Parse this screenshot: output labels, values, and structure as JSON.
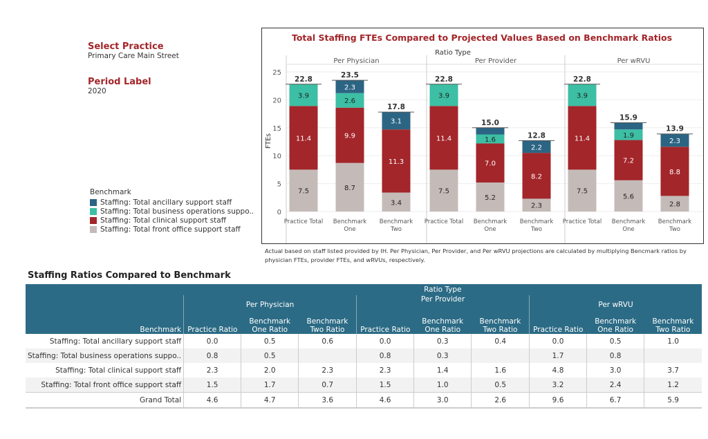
{
  "filters": {
    "practice_label": "Select Practice",
    "practice_value": "Primary Care Main Street",
    "period_label": "Period Label",
    "period_value": "2020"
  },
  "legend": {
    "title": "Benchmark",
    "items": [
      "Staffing: Total ancillary support staff",
      "Staffing: Total business operations suppo..",
      "Staffing: Total clinical support staff",
      "Staffing: Total front office support staff"
    ]
  },
  "colors": {
    "ancillary": "#2c6584",
    "business": "#3cbfa4",
    "clinical": "#a3262a",
    "front": "#c4bbb8",
    "header": "#2c6b85",
    "title": "#a3262a"
  },
  "chart_data": {
    "type": "bar",
    "stacked": true,
    "title": "Total Staffing FTEs Compared to Projected Values Based on Benchmark Ratios",
    "panel_header": "Ratio Type",
    "panels": [
      "Per Physician",
      "Per Provider",
      "Per wRVU"
    ],
    "categories": [
      "Practice Total",
      "Benchmark One",
      "Benchmark Two"
    ],
    "ylabel": "FTEs",
    "ylim": [
      0,
      25
    ],
    "yticks": [
      0,
      5,
      10,
      15,
      20,
      25
    ],
    "grid": true,
    "series": [
      {
        "name": "Staffing: Total front office support staff",
        "key": "front",
        "values": [
          [
            7.5,
            8.7,
            3.4
          ],
          [
            7.5,
            5.2,
            2.3
          ],
          [
            7.5,
            5.6,
            2.8
          ]
        ],
        "labels": [
          [
            "7.5",
            "8.7",
            "3.4"
          ],
          [
            "7.5",
            "5.2",
            "2.3"
          ],
          [
            "7.5",
            "5.6",
            "2.8"
          ]
        ]
      },
      {
        "name": "Staffing: Total clinical support staff",
        "key": "clinical",
        "values": [
          [
            11.4,
            9.9,
            11.3
          ],
          [
            11.4,
            7.0,
            8.2
          ],
          [
            11.4,
            7.2,
            8.8
          ]
        ],
        "labels": [
          [
            "11.4",
            "9.9",
            "11.3"
          ],
          [
            "11.4",
            "7.0",
            "8.2"
          ],
          [
            "11.4",
            "7.2",
            "8.8"
          ]
        ]
      },
      {
        "name": "Staffing: Total business operations suppo..",
        "key": "business",
        "values": [
          [
            3.9,
            2.6,
            0
          ],
          [
            3.9,
            1.6,
            0
          ],
          [
            3.9,
            1.9,
            0
          ]
        ],
        "labels": [
          [
            "3.9",
            "2.6",
            ""
          ],
          [
            "3.9",
            "1.6",
            ""
          ],
          [
            "3.9",
            "1.9",
            ""
          ]
        ]
      },
      {
        "name": "Staffing: Total ancillary support staff",
        "key": "ancillary",
        "values": [
          [
            0,
            2.3,
            3.1
          ],
          [
            0,
            1.2,
            2.2
          ],
          [
            0,
            1.2,
            2.3
          ]
        ],
        "labels": [
          [
            "",
            "2.3",
            "3.1"
          ],
          [
            "",
            "",
            "2.2"
          ],
          [
            "",
            "",
            "2.3"
          ]
        ]
      }
    ],
    "totals": [
      [
        "22.8",
        "23.5",
        "17.8"
      ],
      [
        "22.8",
        "15.0",
        "12.8"
      ],
      [
        "22.8",
        "15.9",
        "13.9"
      ]
    ],
    "note": "Actual based on staff listed provided by IH. Per Physician, Per Provider, and Per wRVU projections are calculated by multiplying Bencmark ratios by physician FTEs, provider FTEs, and wRVUs, respectively."
  },
  "table": {
    "title": "Staffing Ratios Compared to Benchmark",
    "ratio_type": "Ratio Type",
    "groups": [
      "Per Physician",
      "Per Provider",
      "Per wRVU"
    ],
    "row_header": "Benchmark",
    "columns": [
      "Practice Ratio",
      "Benchmark One Ratio",
      "Benchmark Two Ratio"
    ],
    "rows": [
      {
        "label": "Staffing: Total ancillary support staff",
        "values": [
          "0.0",
          "0.5",
          "0.6",
          "0.0",
          "0.3",
          "0.4",
          "0.0",
          "0.5",
          "1.0"
        ]
      },
      {
        "label": "Staffing: Total business operations suppo..",
        "values": [
          "0.8",
          "0.5",
          "",
          "0.8",
          "0.3",
          "",
          "1.7",
          "0.8",
          ""
        ]
      },
      {
        "label": "Staffing: Total clinical support staff",
        "values": [
          "2.3",
          "2.0",
          "2.3",
          "2.3",
          "1.4",
          "1.6",
          "4.8",
          "3.0",
          "3.7"
        ]
      },
      {
        "label": "Staffing: Total front office support staff",
        "values": [
          "1.5",
          "1.7",
          "0.7",
          "1.5",
          "1.0",
          "0.5",
          "3.2",
          "2.4",
          "1.2"
        ]
      },
      {
        "label": "Grand Total",
        "values": [
          "4.6",
          "4.7",
          "3.6",
          "4.6",
          "3.0",
          "2.6",
          "9.6",
          "6.7",
          "5.9"
        ]
      }
    ]
  }
}
